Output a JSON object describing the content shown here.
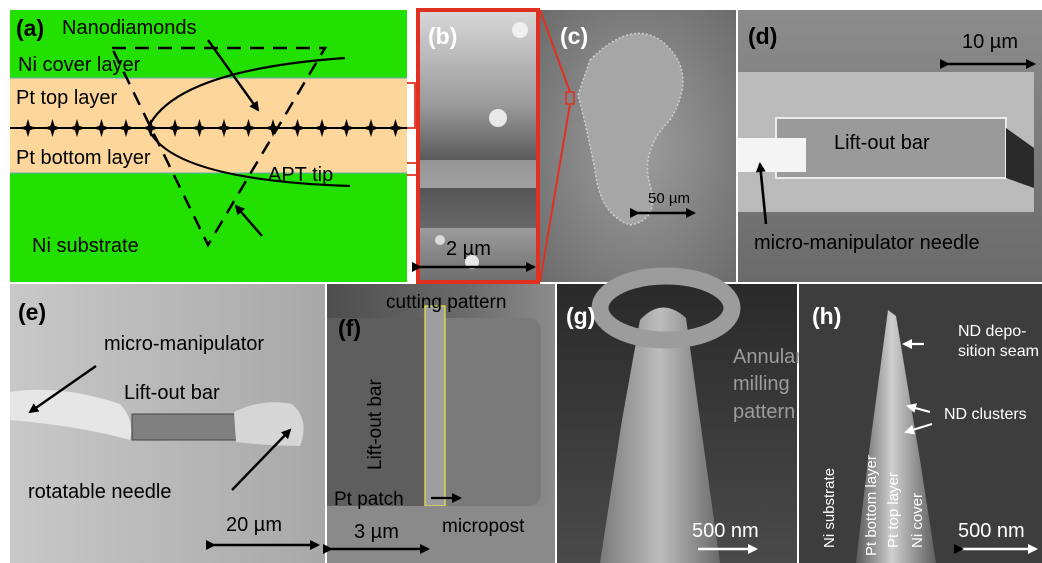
{
  "panels": {
    "a": {
      "letter": "(a)",
      "nanodiamonds": "Nanodiamonds",
      "ni_cover": "Ni cover layer",
      "pt_top": "Pt top layer",
      "pt_bottom": "Pt bottom layer",
      "apt_tip": "APT tip",
      "ni_substrate": "Ni substrate"
    },
    "b": {
      "letter": "(b)",
      "scale": "2 µm"
    },
    "c": {
      "letter": "(c)",
      "scale": "50 µm"
    },
    "d": {
      "letter": "(d)",
      "scale": "10 µm",
      "lift_out": "Lift-out bar",
      "needle": "micro-manipulator needle"
    },
    "e": {
      "letter": "(e)",
      "manipulator": "micro-manipulator",
      "lift_out": "Lift-out bar",
      "rotatable": "rotatable needle",
      "scale": "20 µm"
    },
    "f": {
      "letter": "(f)",
      "cutting": "cutting pattern",
      "lift_out": "Lift-out bar",
      "pt_patch": "Pt patch",
      "micropost": "micropost",
      "scale": "3 µm"
    },
    "g": {
      "letter": "(g)",
      "annular_1": "Annular",
      "annular_2": "milling",
      "annular_3": "pattern",
      "scale": "500 nm"
    },
    "h": {
      "letter": "(h)",
      "seam_1": "ND depo-",
      "seam_2": "sition seam",
      "clusters": "ND clusters",
      "ni_substrate": "Ni substrate",
      "pt_bottom": "Pt bottom layer",
      "pt_top": "Pt top layer",
      "ni_cover": "Ni cover",
      "scale": "500 nm"
    }
  },
  "colors": {
    "ni_green": "#22e000",
    "pt_tan": "#fcd69a",
    "highlight_red": "#e03020",
    "sem_dark": "#3a3a3a",
    "sem_mid": "#8a8a8a"
  }
}
